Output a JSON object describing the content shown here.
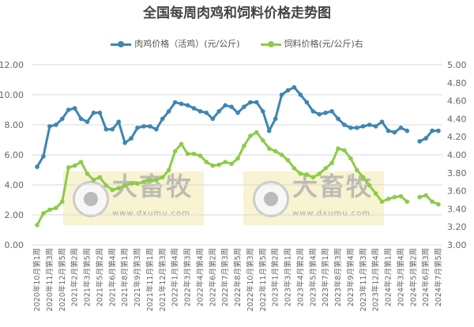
{
  "chart_data": {
    "type": "line",
    "title": "全国每周肉鸡和饲料价格走势图",
    "legend_position": "top",
    "grid": true,
    "colors": {
      "meat": "#3d86b3",
      "feed": "#8dcb4a"
    },
    "y_left": {
      "lim": [
        0,
        12
      ],
      "ticks": [
        "0.00",
        "2.00",
        "4.00",
        "6.00",
        "8.00",
        "10.00",
        "12.00"
      ]
    },
    "y_right": {
      "lim": [
        3,
        5
      ],
      "ticks": [
        "3.00",
        "3.20",
        "3.40",
        "3.60",
        "3.80",
        "4.00",
        "4.20",
        "4.40",
        "4.60",
        "4.80",
        "5.00"
      ]
    },
    "tick_labels": [
      "2020年10月第1周",
      "2020年11月第3周",
      "2020年12月第5周",
      "2021年2月第2周",
      "2021年3月第5周",
      "2021年5月第2周",
      "2021年6月第4周",
      "2021年8月第1周",
      "2021年9月第3周",
      "2021年11月第1周",
      "2021年12月第3周",
      "2022年1月第4周",
      "2022年3月第3周",
      "2022年4月第4周",
      "2022年6月第2周",
      "2022年7月第3周",
      "2022年8月第5周",
      "2022年10月第3周",
      "2022年11月第5周",
      "2023年1月第2周",
      "2023年3月第1周",
      "2023年4月第2周",
      "2023年5月第4周",
      "2023年7月第1周",
      "2023年8月第3周",
      "2023年9月第4周",
      "2023年11月第3周",
      "2023年12月第4周",
      "2024年2月第1周",
      "2024年3月第4周",
      "2024年5月第2周",
      "2024年6月第3周",
      "2024年7月第5周"
    ],
    "series": [
      {
        "name": "肉鸡价格（活鸡）(元/公斤)",
        "axis": "left",
        "values": [
          5.2,
          5.9,
          7.9,
          8.0,
          8.4,
          9.0,
          9.1,
          8.4,
          8.2,
          8.8,
          8.8,
          7.7,
          7.7,
          8.2,
          6.8,
          7.1,
          7.8,
          7.9,
          7.9,
          7.7,
          8.4,
          8.9,
          9.5,
          9.4,
          9.3,
          9.1,
          8.9,
          8.8,
          8.4,
          8.9,
          9.3,
          9.2,
          8.8,
          9.2,
          9.5,
          9.5,
          8.9,
          7.6,
          8.4,
          10.0,
          10.3,
          10.5,
          10.0,
          9.5,
          8.9,
          8.7,
          8.8,
          8.9,
          8.4,
          8.0,
          7.8,
          7.8,
          7.9,
          8.0,
          7.9,
          8.2,
          7.6,
          7.5,
          7.8,
          7.6,
          null,
          6.9,
          7.1,
          7.6,
          7.6
        ]
      },
      {
        "name": "饲料价格(元/公斤)右",
        "axis": "right",
        "values": [
          3.22,
          3.35,
          3.39,
          3.41,
          3.48,
          3.86,
          3.88,
          3.92,
          3.79,
          3.72,
          3.75,
          3.66,
          3.61,
          3.63,
          3.66,
          3.68,
          3.68,
          3.7,
          3.72,
          3.72,
          3.75,
          3.83,
          4.04,
          4.12,
          4.01,
          4.01,
          3.99,
          3.92,
          3.88,
          3.89,
          3.92,
          3.9,
          3.96,
          4.1,
          4.21,
          4.25,
          4.16,
          4.07,
          4.04,
          4.0,
          3.94,
          3.85,
          3.79,
          3.78,
          3.75,
          3.79,
          3.85,
          3.91,
          4.07,
          4.05,
          3.96,
          3.83,
          3.75,
          3.66,
          3.57,
          3.48,
          3.51,
          3.53,
          3.54,
          3.48,
          null,
          3.53,
          3.55,
          3.48,
          3.45
        ]
      }
    ]
  },
  "watermark": {
    "brand": "大畜牧",
    "url": "www.dxumu.com"
  }
}
